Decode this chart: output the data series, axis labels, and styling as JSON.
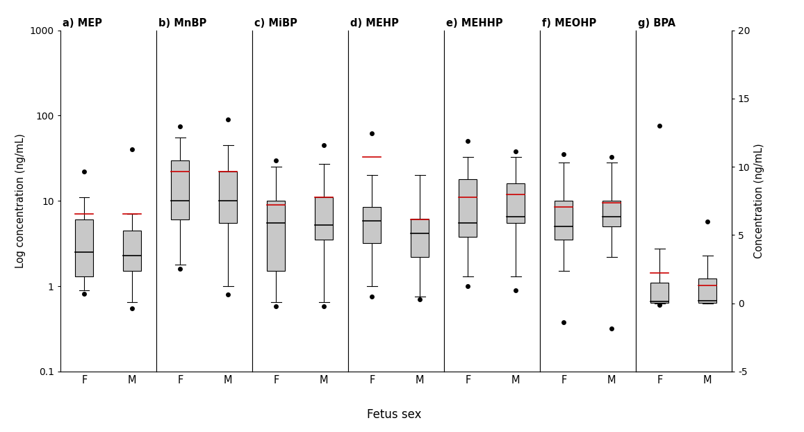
{
  "panels": [
    {
      "label": "a) MEP",
      "type": "log",
      "groups": [
        {
          "sex": "F",
          "whisker_low": 0.9,
          "q1": 1.3,
          "median": 2.5,
          "q3": 6.0,
          "whisker_high": 11.0,
          "mean": 7.0,
          "outliers_low": [
            0.82
          ],
          "outliers_high": [
            22.0
          ]
        },
        {
          "sex": "M",
          "whisker_low": 0.65,
          "q1": 1.5,
          "median": 2.3,
          "q3": 4.5,
          "whisker_high": 7.0,
          "mean": 7.0,
          "outliers_low": [
            0.55
          ],
          "outliers_high": [
            40.0
          ]
        }
      ]
    },
    {
      "label": "b) MnBP",
      "type": "log",
      "groups": [
        {
          "sex": "F",
          "whisker_low": 1.8,
          "q1": 6.0,
          "median": 10.0,
          "q3": 30.0,
          "whisker_high": 55.0,
          "mean": 22.0,
          "outliers_low": [
            1.6
          ],
          "outliers_high": [
            75.0
          ]
        },
        {
          "sex": "M",
          "whisker_low": 1.0,
          "q1": 5.5,
          "median": 10.0,
          "q3": 22.0,
          "whisker_high": 45.0,
          "mean": 22.0,
          "outliers_low": [
            0.8
          ],
          "outliers_high": [
            90.0
          ]
        }
      ]
    },
    {
      "label": "c) MiBP",
      "type": "log",
      "groups": [
        {
          "sex": "F",
          "whisker_low": 0.65,
          "q1": 1.5,
          "median": 5.5,
          "q3": 10.0,
          "whisker_high": 25.0,
          "mean": 9.0,
          "outliers_low": [
            0.58
          ],
          "outliers_high": [
            30.0
          ]
        },
        {
          "sex": "M",
          "whisker_low": 0.65,
          "q1": 3.5,
          "median": 5.2,
          "q3": 11.0,
          "whisker_high": 27.0,
          "mean": 11.0,
          "outliers_low": [
            0.58
          ],
          "outliers_high": [
            45.0
          ]
        }
      ]
    },
    {
      "label": "d) MEHP",
      "type": "log",
      "groups": [
        {
          "sex": "F",
          "whisker_low": 1.0,
          "q1": 3.2,
          "median": 5.8,
          "q3": 8.5,
          "whisker_high": 20.0,
          "mean": 33.0,
          "outliers_low": [
            0.75
          ],
          "outliers_high": [
            62.0
          ]
        },
        {
          "sex": "M",
          "whisker_low": 0.75,
          "q1": 2.2,
          "median": 4.2,
          "q3": 6.2,
          "whisker_high": 20.0,
          "mean": 6.0,
          "outliers_low": [
            0.7
          ],
          "outliers_high": []
        }
      ]
    },
    {
      "label": "e) MEHHP",
      "type": "log",
      "groups": [
        {
          "sex": "F",
          "whisker_low": 1.3,
          "q1": 3.8,
          "median": 5.5,
          "q3": 18.0,
          "whisker_high": 33.0,
          "mean": 11.0,
          "outliers_low": [
            1.0
          ],
          "outliers_high": [
            50.0
          ]
        },
        {
          "sex": "M",
          "whisker_low": 1.3,
          "q1": 5.5,
          "median": 6.5,
          "q3": 16.0,
          "whisker_high": 33.0,
          "mean": 12.0,
          "outliers_low": [
            0.9
          ],
          "outliers_high": [
            38.0
          ]
        }
      ]
    },
    {
      "label": "f) MEOHP",
      "type": "log",
      "groups": [
        {
          "sex": "F",
          "whisker_low": 1.5,
          "q1": 3.5,
          "median": 5.0,
          "q3": 10.0,
          "whisker_high": 28.0,
          "mean": 8.5,
          "outliers_low": [
            0.38
          ],
          "outliers_high": [
            35.0
          ]
        },
        {
          "sex": "M",
          "whisker_low": 2.2,
          "q1": 5.0,
          "median": 6.5,
          "q3": 10.0,
          "whisker_high": 28.0,
          "mean": 9.5,
          "outliers_low": [
            0.32
          ],
          "outliers_high": [
            33.0
          ]
        }
      ]
    },
    {
      "label": "g) BPA",
      "type": "linear",
      "groups": [
        {
          "sex": "F",
          "whisker_low": 0.0,
          "q1": 0.05,
          "median": 0.15,
          "q3": 1.5,
          "whisker_high": 4.0,
          "mean": 2.2,
          "outliers_low": [
            -0.1
          ],
          "outliers_high": [
            13.0
          ]
        },
        {
          "sex": "M",
          "whisker_low": 0.0,
          "q1": 0.05,
          "median": 0.2,
          "q3": 1.8,
          "whisker_high": 3.5,
          "mean": 1.3,
          "outliers_low": [],
          "outliers_high": [
            6.0
          ]
        }
      ]
    }
  ],
  "box_color": "#c8c8c8",
  "box_edge_color": "#000000",
  "median_color": "#000000",
  "mean_color": "#cc0000",
  "whisker_color": "#000000",
  "outlier_color": "#000000",
  "left_ylabel": "Log concentration (ng/mL)",
  "right_ylabel": "Concentration (ng/mL)",
  "xlabel": "Fetus sex",
  "log_ylim": [
    0.1,
    1000
  ],
  "log_yticks": [
    0.1,
    1,
    10,
    100,
    1000
  ],
  "log_yticklabels": [
    "0.1",
    "1",
    "10",
    "100",
    "1000"
  ],
  "linear_ylim": [
    -5,
    20
  ],
  "linear_yticks": [
    -5,
    0,
    5,
    10,
    15,
    20
  ],
  "linear_yticklabels": [
    "-5",
    "0",
    "5",
    "10",
    "15",
    "20"
  ]
}
